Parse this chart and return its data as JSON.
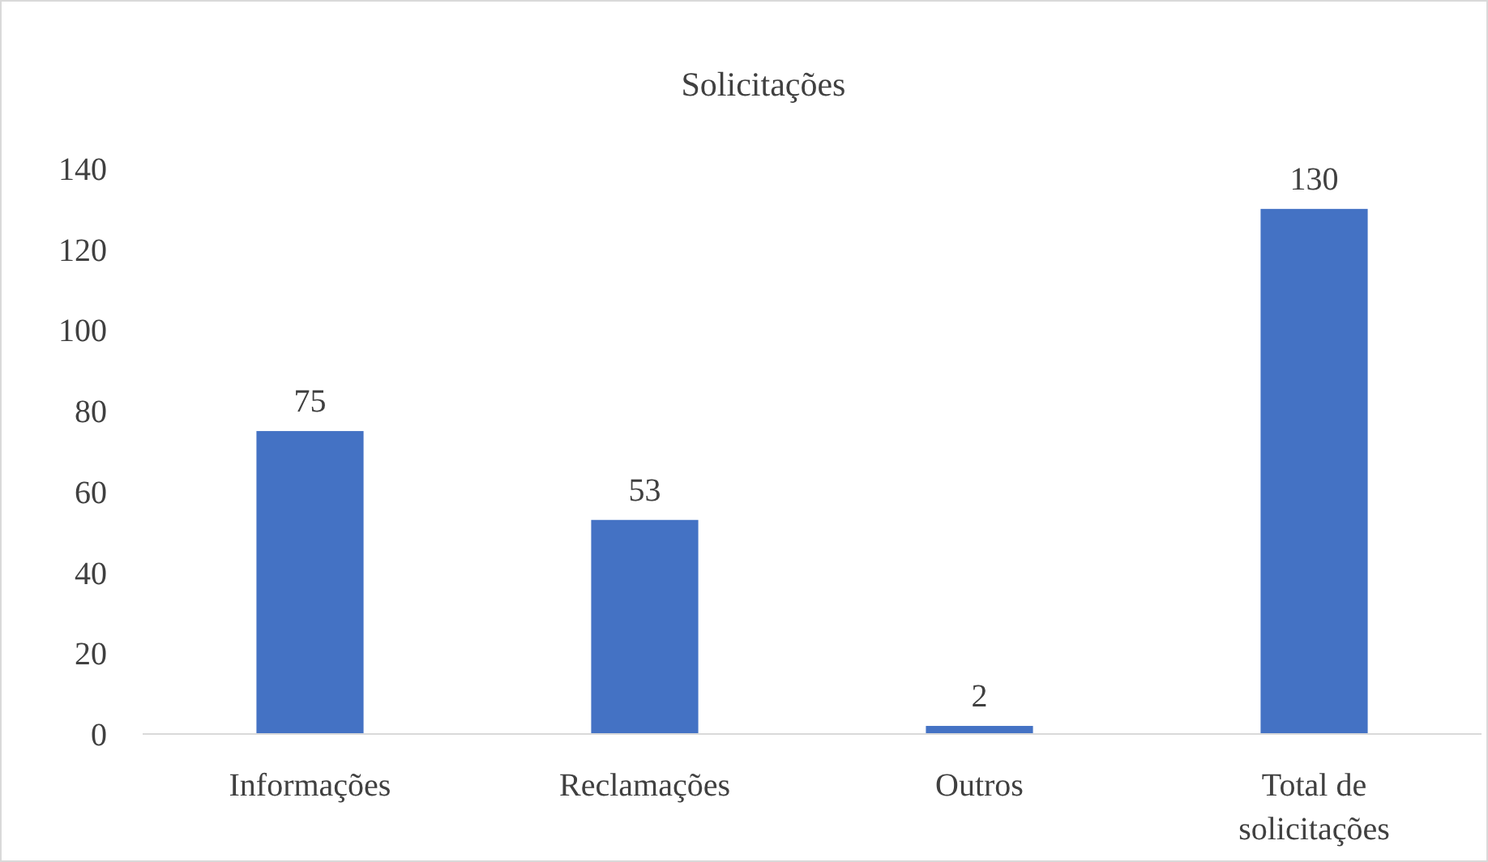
{
  "chart_data": {
    "type": "bar",
    "title": "Solicitações",
    "categories": [
      "Informações",
      "Reclamações",
      "Outros",
      "Total de solicitações"
    ],
    "values": [
      75,
      53,
      2,
      130
    ],
    "color": "#4472c4",
    "ylim": [
      0,
      140
    ],
    "yticks": [
      0,
      20,
      40,
      60,
      80,
      100,
      120,
      140
    ],
    "grid": false,
    "data_labels": true
  }
}
